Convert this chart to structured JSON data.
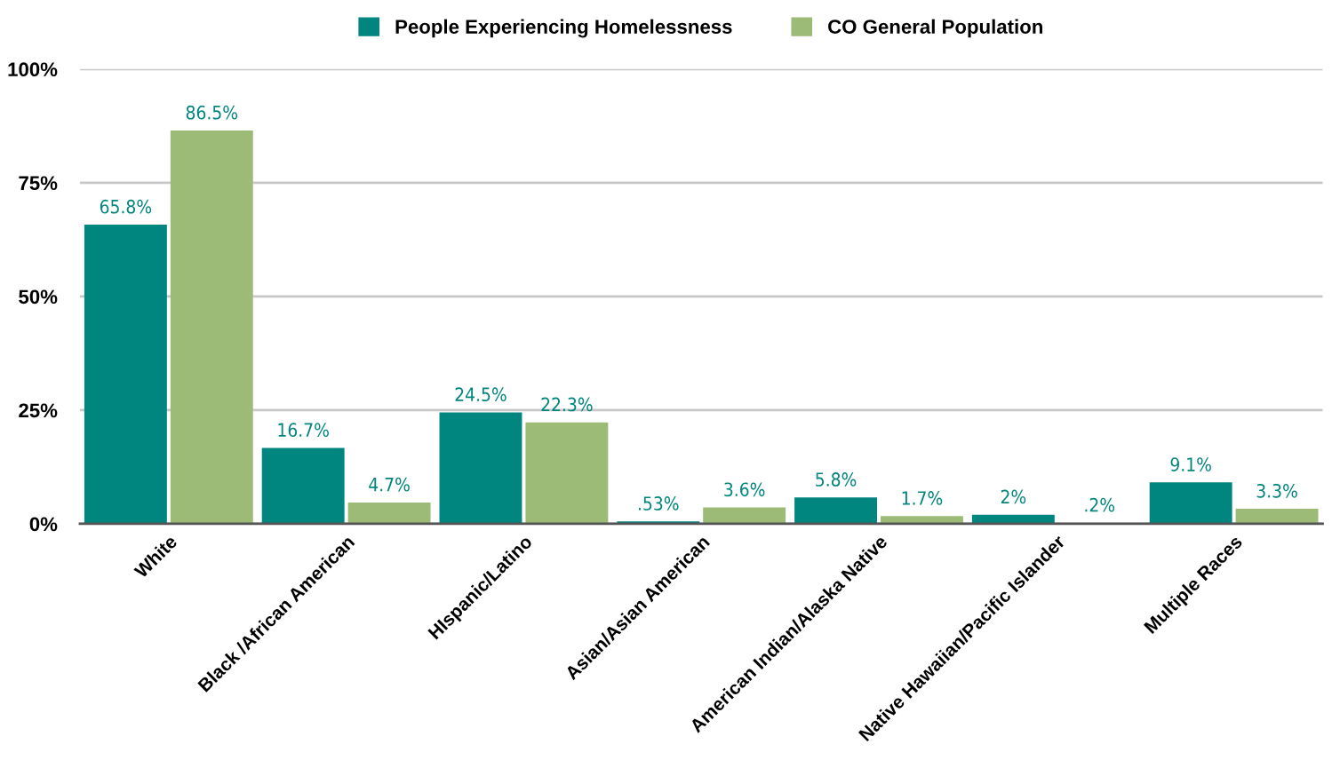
{
  "chart_data": {
    "type": "bar",
    "categories": [
      "White",
      "Black /African American",
      "HIspanic/Latino",
      "Asian/Asian American",
      "American Indian/Alaska Native",
      "Native Hawaiian/Pacific Islander",
      "Multiple Races"
    ],
    "series": [
      {
        "name": "People Experiencing Homelessness",
        "color": "#00857f",
        "values": [
          65.8,
          16.7,
          24.5,
          0.53,
          5.8,
          2,
          9.1
        ],
        "value_labels": [
          "65.8%",
          "16.7%",
          "24.5%",
          ".53%",
          "5.8%",
          "2%",
          "9.1%"
        ]
      },
      {
        "name": "CO General Population",
        "color": "#9bbb76",
        "values": [
          86.5,
          4.7,
          22.3,
          3.6,
          1.7,
          0.2,
          3.3
        ],
        "value_labels": [
          "86.5%",
          "4.7%",
          "22.3%",
          "3.6%",
          "1.7%",
          ".2%",
          "3.3%"
        ]
      }
    ],
    "ylim": [
      0,
      100
    ],
    "yticks": [
      {
        "value": 0,
        "label": "0%"
      },
      {
        "value": 25,
        "label": "25%"
      },
      {
        "value": 50,
        "label": "50%"
      },
      {
        "value": 75,
        "label": "75%"
      },
      {
        "value": 100,
        "label": "100%"
      }
    ],
    "grid": "y",
    "legend": "top"
  }
}
